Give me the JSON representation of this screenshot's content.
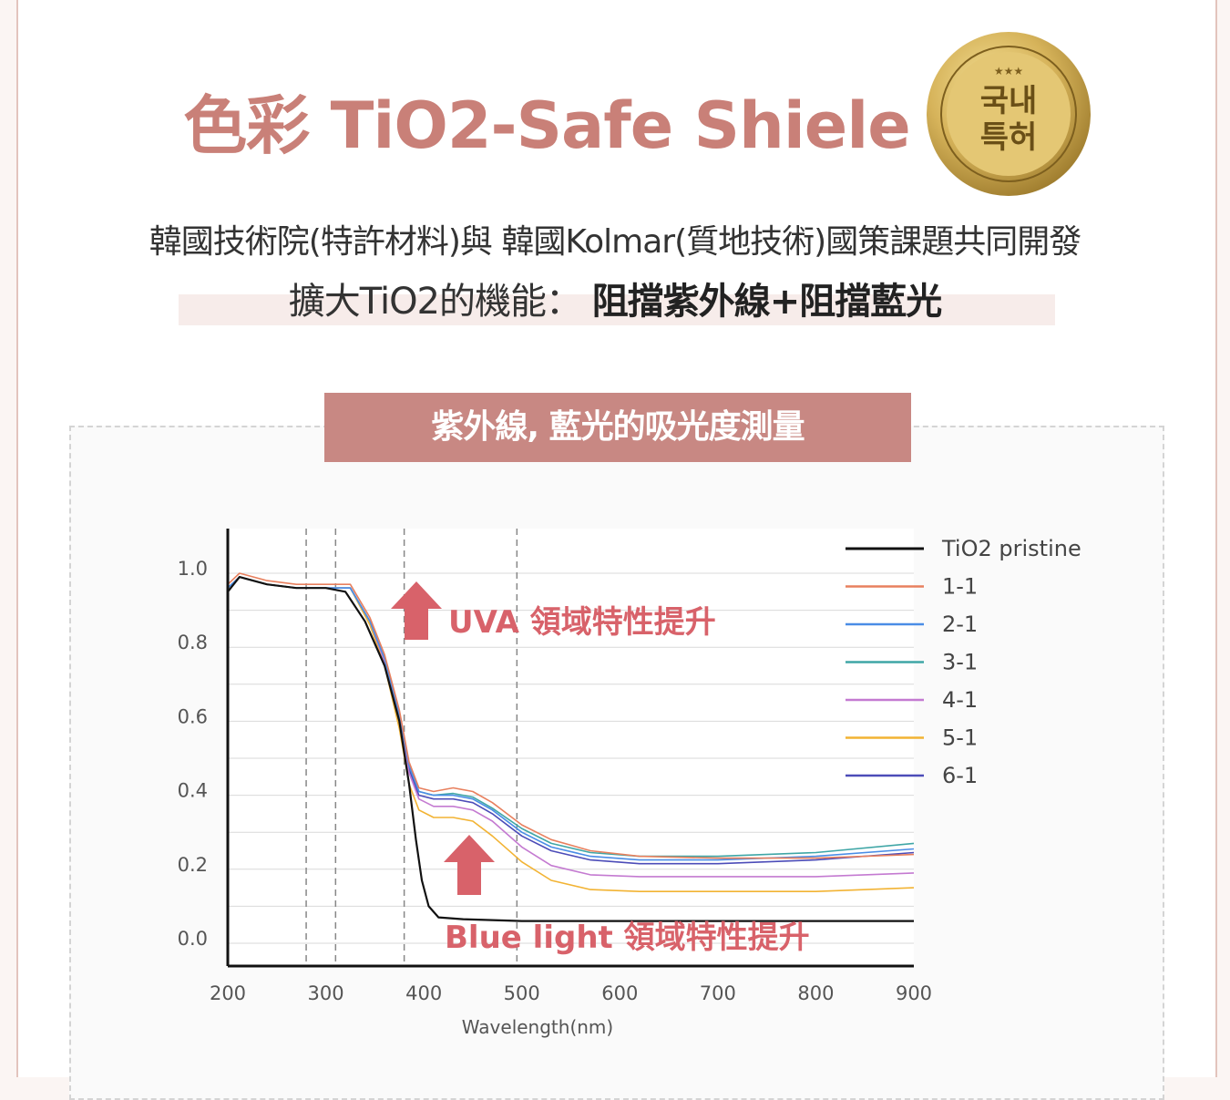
{
  "header": {
    "title": "色彩 TiO2-Safe Shiele",
    "seal_text_line1": "국내",
    "seal_text_line2": "특허",
    "seal_stars": "★★★",
    "subtitle_line1": "韓國技術院(特許材料)與 韓國Kolmar(質地技術)國策課題共同開發",
    "subtitle_line2_prefix": "擴大TiO2的機能：",
    "subtitle_line2_strong": "阻擋紫外線+阻擋藍光"
  },
  "chart_title": "紫外線, 藍光的吸光度測量",
  "colors": {
    "title": "#c98078",
    "banner": "#c88883",
    "annotation": "#d8626a",
    "arrow": "#d8626a",
    "gold": "#c9a646"
  },
  "chart_data": {
    "type": "line",
    "xlabel": "Wavelength(nm)",
    "ylabel": "",
    "xlim": [
      200,
      900
    ],
    "ylim": [
      0.0,
      1.0
    ],
    "x_ticks": [
      "200",
      "300",
      "400",
      "500",
      "600",
      "700",
      "800",
      "900"
    ],
    "y_ticks": [
      "1.0",
      "0.8",
      "0.6",
      "0.4",
      "0.2",
      "0.0"
    ],
    "x_tick_values": [
      200,
      300,
      400,
      500,
      600,
      700,
      800,
      900
    ],
    "y_tick_values": [
      1.0,
      0.8,
      0.6,
      0.4,
      0.2,
      0.0
    ],
    "dashed_vlines": [
      280,
      310,
      380,
      495
    ],
    "grid": true,
    "legend_position": "top-right",
    "annotations": [
      "UVA 領域特性提升",
      "Blue light 領域特性提升"
    ],
    "series": [
      {
        "name": "TiO2 pristine",
        "color": "#111111",
        "points": [
          [
            200,
            0.95
          ],
          [
            212,
            0.99
          ],
          [
            240,
            0.97
          ],
          [
            270,
            0.96
          ],
          [
            300,
            0.96
          ],
          [
            320,
            0.95
          ],
          [
            340,
            0.87
          ],
          [
            360,
            0.75
          ],
          [
            375,
            0.6
          ],
          [
            385,
            0.43
          ],
          [
            392,
            0.28
          ],
          [
            398,
            0.17
          ],
          [
            405,
            0.1
          ],
          [
            415,
            0.07
          ],
          [
            440,
            0.065
          ],
          [
            500,
            0.06
          ],
          [
            600,
            0.06
          ],
          [
            700,
            0.06
          ],
          [
            800,
            0.06
          ],
          [
            900,
            0.06
          ]
        ]
      },
      {
        "name": "1-1",
        "color": "#e8805e",
        "points": [
          [
            200,
            0.97
          ],
          [
            212,
            1.0
          ],
          [
            240,
            0.98
          ],
          [
            270,
            0.97
          ],
          [
            300,
            0.97
          ],
          [
            325,
            0.97
          ],
          [
            345,
            0.88
          ],
          [
            360,
            0.78
          ],
          [
            375,
            0.63
          ],
          [
            385,
            0.49
          ],
          [
            395,
            0.42
          ],
          [
            410,
            0.41
          ],
          [
            430,
            0.42
          ],
          [
            450,
            0.41
          ],
          [
            470,
            0.38
          ],
          [
            500,
            0.32
          ],
          [
            530,
            0.28
          ],
          [
            570,
            0.25
          ],
          [
            620,
            0.235
          ],
          [
            700,
            0.23
          ],
          [
            800,
            0.23
          ],
          [
            900,
            0.24
          ]
        ]
      },
      {
        "name": "2-1",
        "color": "#4a8de6",
        "points": [
          [
            200,
            0.96
          ],
          [
            212,
            0.99
          ],
          [
            240,
            0.97
          ],
          [
            270,
            0.96
          ],
          [
            300,
            0.96
          ],
          [
            325,
            0.96
          ],
          [
            345,
            0.87
          ],
          [
            360,
            0.77
          ],
          [
            375,
            0.62
          ],
          [
            385,
            0.48
          ],
          [
            395,
            0.41
          ],
          [
            410,
            0.4
          ],
          [
            430,
            0.4
          ],
          [
            450,
            0.39
          ],
          [
            470,
            0.36
          ],
          [
            500,
            0.3
          ],
          [
            530,
            0.26
          ],
          [
            570,
            0.235
          ],
          [
            620,
            0.225
          ],
          [
            700,
            0.225
          ],
          [
            800,
            0.235
          ],
          [
            900,
            0.255
          ]
        ]
      },
      {
        "name": "3-1",
        "color": "#3fa6a6",
        "points": [
          [
            200,
            0.96
          ],
          [
            212,
            0.99
          ],
          [
            240,
            0.97
          ],
          [
            270,
            0.96
          ],
          [
            300,
            0.96
          ],
          [
            325,
            0.96
          ],
          [
            345,
            0.87
          ],
          [
            360,
            0.77
          ],
          [
            375,
            0.62
          ],
          [
            385,
            0.48
          ],
          [
            395,
            0.41
          ],
          [
            410,
            0.4
          ],
          [
            430,
            0.405
          ],
          [
            450,
            0.395
          ],
          [
            470,
            0.365
          ],
          [
            500,
            0.31
          ],
          [
            530,
            0.27
          ],
          [
            570,
            0.245
          ],
          [
            620,
            0.235
          ],
          [
            700,
            0.235
          ],
          [
            800,
            0.245
          ],
          [
            900,
            0.27
          ]
        ]
      },
      {
        "name": "4-1",
        "color": "#c47ad1",
        "points": [
          [
            200,
            0.96
          ],
          [
            212,
            0.99
          ],
          [
            240,
            0.97
          ],
          [
            270,
            0.96
          ],
          [
            300,
            0.96
          ],
          [
            325,
            0.96
          ],
          [
            345,
            0.87
          ],
          [
            360,
            0.76
          ],
          [
            375,
            0.6
          ],
          [
            385,
            0.46
          ],
          [
            395,
            0.39
          ],
          [
            410,
            0.37
          ],
          [
            430,
            0.37
          ],
          [
            450,
            0.36
          ],
          [
            470,
            0.33
          ],
          [
            500,
            0.26
          ],
          [
            530,
            0.21
          ],
          [
            570,
            0.185
          ],
          [
            620,
            0.18
          ],
          [
            700,
            0.18
          ],
          [
            800,
            0.18
          ],
          [
            900,
            0.19
          ]
        ]
      },
      {
        "name": "5-1",
        "color": "#f2b333",
        "points": [
          [
            200,
            0.96
          ],
          [
            212,
            0.99
          ],
          [
            240,
            0.97
          ],
          [
            270,
            0.96
          ],
          [
            300,
            0.96
          ],
          [
            325,
            0.96
          ],
          [
            345,
            0.86
          ],
          [
            360,
            0.75
          ],
          [
            375,
            0.58
          ],
          [
            385,
            0.43
          ],
          [
            395,
            0.36
          ],
          [
            410,
            0.34
          ],
          [
            430,
            0.34
          ],
          [
            450,
            0.33
          ],
          [
            470,
            0.29
          ],
          [
            500,
            0.22
          ],
          [
            530,
            0.17
          ],
          [
            570,
            0.145
          ],
          [
            620,
            0.14
          ],
          [
            700,
            0.14
          ],
          [
            800,
            0.14
          ],
          [
            900,
            0.15
          ]
        ]
      },
      {
        "name": "6-1",
        "color": "#4c4cb8",
        "points": [
          [
            200,
            0.96
          ],
          [
            212,
            0.99
          ],
          [
            240,
            0.97
          ],
          [
            270,
            0.96
          ],
          [
            300,
            0.96
          ],
          [
            325,
            0.96
          ],
          [
            345,
            0.87
          ],
          [
            360,
            0.76
          ],
          [
            375,
            0.61
          ],
          [
            385,
            0.47
          ],
          [
            395,
            0.4
          ],
          [
            410,
            0.39
          ],
          [
            430,
            0.39
          ],
          [
            450,
            0.38
          ],
          [
            470,
            0.35
          ],
          [
            500,
            0.29
          ],
          [
            530,
            0.25
          ],
          [
            570,
            0.225
          ],
          [
            620,
            0.215
          ],
          [
            700,
            0.215
          ],
          [
            800,
            0.225
          ],
          [
            900,
            0.245
          ]
        ]
      }
    ]
  }
}
